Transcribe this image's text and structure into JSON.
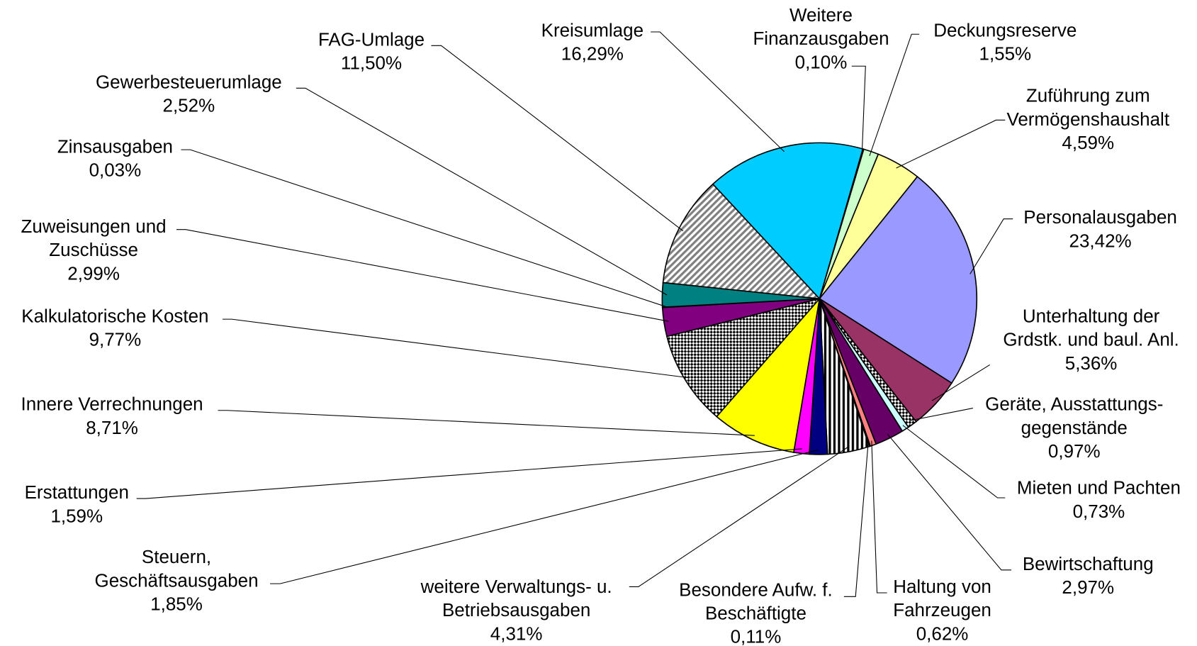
{
  "chart_data": {
    "type": "pie",
    "categories": [
      "Weitere\nFinanzausgaben",
      "Deckungsreserve",
      "Zuführung zum\nVermögenshaushalt",
      "Personalausgaben",
      "Unterhaltung der\nGrdstk. und baul. Anl.",
      "Geräte, Ausstattungs-\ngegenstände",
      "Mieten und Pachten",
      "Bewirtschaftung",
      "Haltung von\nFahrzeugen",
      "Besondere Aufw. f.\nBeschäftigte",
      "weitere Verwaltungs- u.\nBetriebsausgaben",
      "Steuern,\nGeschäftsausgaben",
      "Erstattungen",
      "Innere Verrechnungen",
      "Kalkulatorische Kosten",
      "Zuweisungen und\nZuschüsse",
      "Zinsausgaben",
      "Gewerbesteuerumlage",
      "FAG-Umlage",
      "Kreisumlage"
    ],
    "values": [
      0.1,
      1.55,
      4.59,
      23.42,
      5.36,
      0.97,
      0.73,
      2.97,
      0.62,
      0.11,
      4.31,
      1.85,
      1.59,
      8.71,
      9.77,
      2.99,
      0.03,
      2.52,
      11.5,
      16.29
    ],
    "value_labels": [
      "0,10%",
      "1,55%",
      "4,59%",
      "23,42%",
      "5,36%",
      "0,97%",
      "0,73%",
      "2,97%",
      "0,62%",
      "0,11%",
      "4,31%",
      "1,85%",
      "1,59%",
      "8,71%",
      "9,77%",
      "2,99%",
      "0,03%",
      "2,52%",
      "11,50%",
      "16,29%"
    ],
    "colors": [
      "#ccffff",
      "#ccffcc",
      "#ffff99",
      "#9999ff",
      "#993366",
      "#808080",
      "#ccffff",
      "#660066",
      "#ff8080",
      "#0066cc",
      "#000000",
      "#000080",
      "#ff00ff",
      "#ffff00",
      "#000000",
      "#800080",
      "#000000",
      "#008080",
      "#808080",
      "#00ccff"
    ],
    "patterns": [
      null,
      null,
      null,
      null,
      null,
      "checker",
      null,
      null,
      null,
      null,
      "vertical",
      null,
      null,
      null,
      "checker",
      null,
      null,
      null,
      "diagonal",
      null
    ]
  }
}
